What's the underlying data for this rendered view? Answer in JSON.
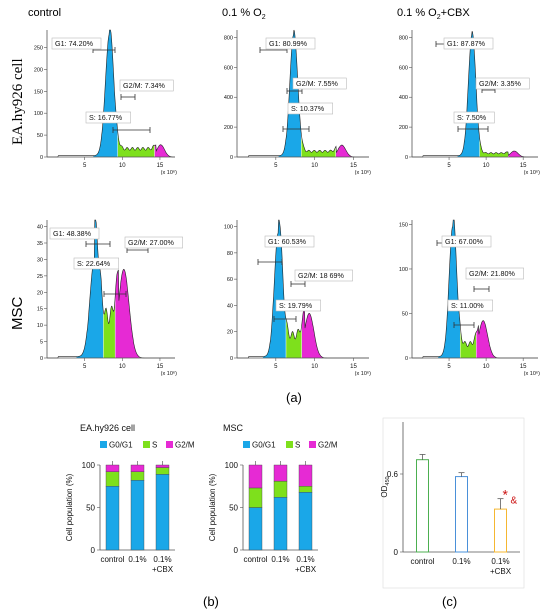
{
  "colors": {
    "g1": "#1aa7e8",
    "s": "#7ee01c",
    "g2m": "#e62ad4",
    "axis": "#555555",
    "ink": "#111111",
    "label_border": "#bbbbbb",
    "od_bar1": "#4caf50",
    "od_bar2": "#4a90d9",
    "od_bar3": "#f5b731",
    "annot": "#cc1111"
  },
  "figure": {
    "panel_a_label": "(a)",
    "panel_b_label": "(b)",
    "panel_c_label": "(c)"
  },
  "histograms": {
    "columns": [
      "control",
      "0.1 % O",
      "0.1 % O"
    ],
    "column_subscript": "2",
    "column_suffix": "+CBX",
    "rows": [
      "EA.hy926 cell",
      "MSC"
    ],
    "x_unit": "(x 10⁶)"
  },
  "chart_data": [
    {
      "type": "area",
      "title": "control",
      "row": "EA.hy926 cell",
      "xlim": [
        0,
        17
      ],
      "ylim": [
        0,
        290
      ],
      "xticks": [
        5,
        10,
        15
      ],
      "yticks": [
        0,
        50,
        100,
        150,
        200,
        250
      ],
      "peaks": {
        "g1_x": 8.3,
        "g1_h": 280,
        "g1_w": 0.55,
        "g2_x": 15.1,
        "g2_h": 28,
        "g2_w": 0.5,
        "s_level": 22,
        "s_end": 14.5
      },
      "annotations": [
        "G1: 74.20%",
        "G2/M: 7.34%",
        "S: 16.77%"
      ],
      "percent": {
        "G1": 74.2,
        "S": 16.77,
        "G2/M": 7.34
      }
    },
    {
      "type": "area",
      "title": "0.1 % O2",
      "row": "EA.hy926 cell",
      "xlim": [
        0,
        17
      ],
      "ylim": [
        0,
        850
      ],
      "xticks": [
        5,
        10,
        15
      ],
      "yticks": [
        0,
        200,
        400,
        600,
        800
      ],
      "peaks": {
        "g1_x": 7.3,
        "g1_h": 820,
        "g1_w": 0.5,
        "g2_x": 13.5,
        "g2_h": 80,
        "g2_w": 0.5,
        "s_level": 45,
        "s_end": 12.8
      },
      "annotations": [
        "G1: 80.99%",
        "G2/M: 7.55%",
        "S: 10.37%"
      ],
      "percent": {
        "G1": 80.99,
        "S": 10.37,
        "G2/M": 7.55
      }
    },
    {
      "type": "area",
      "title": "0.1 % O2 +CBX",
      "row": "EA.hy926 cell",
      "xlim": [
        0,
        17
      ],
      "ylim": [
        0,
        850
      ],
      "xticks": [
        5,
        10,
        15
      ],
      "yticks": [
        0,
        200,
        400,
        600,
        800
      ],
      "peaks": {
        "g1_x": 8.1,
        "g1_h": 820,
        "g1_w": 0.5,
        "g2_x": 13.8,
        "g2_h": 40,
        "g2_w": 0.5,
        "s_level": 30,
        "s_end": 13.0
      },
      "annotations": [
        "G1: 87.87%",
        "G2/M: 3.35%",
        "S: 7.50%"
      ],
      "percent": {
        "G1": 87.87,
        "S": 7.5,
        "G2/M": 3.35
      }
    },
    {
      "type": "area",
      "title": "control",
      "row": "MSC",
      "xlim": [
        0,
        17
      ],
      "ylim": [
        0,
        42
      ],
      "xticks": [
        5,
        10,
        15
      ],
      "yticks": [
        0,
        5,
        10,
        15,
        20,
        25,
        30,
        35,
        40
      ],
      "peaks": {
        "g1_x": 6.3,
        "g1_h": 30,
        "g1_w": 0.6,
        "g2_x": 10.2,
        "g2_h": 27,
        "g2_w": 0.7,
        "s_level": 14,
        "s_end": 9.5
      },
      "annotations": [
        "G1: 48.38%",
        "G2/M: 27.00%",
        "S: 22.64%"
      ],
      "percent": {
        "G1": 48.38,
        "S": 22.64,
        "G2/M": 27.0
      }
    },
    {
      "type": "area",
      "title": "0.1 % O2",
      "row": "MSC",
      "xlim": [
        0,
        17
      ],
      "ylim": [
        0,
        105
      ],
      "xticks": [
        5,
        10,
        15
      ],
      "yticks": [
        0,
        20,
        40,
        60,
        80,
        100
      ],
      "peaks": {
        "g1_x": 5.3,
        "g1_h": 95,
        "g1_w": 0.5,
        "g2_x": 9.3,
        "g2_h": 34,
        "g2_w": 0.6,
        "s_level": 20,
        "s_end": 8.7
      },
      "annotations": [
        "G1: 60.53%",
        "G2/M: 18 69%",
        "S: 19.79%"
      ],
      "percent": {
        "G1": 60.53,
        "S": 19.79,
        "G2/M": 18.69
      }
    },
    {
      "type": "area",
      "title": "0.1 % O2 +CBX",
      "row": "MSC",
      "xlim": [
        0,
        17
      ],
      "ylim": [
        0,
        155
      ],
      "xticks": [
        5,
        10,
        15
      ],
      "yticks": [
        0,
        50,
        100,
        150
      ],
      "peaks": {
        "g1_x": 5.5,
        "g1_h": 148,
        "g1_w": 0.5,
        "g2_x": 9.6,
        "g2_h": 42,
        "g2_w": 0.6,
        "s_level": 18,
        "s_end": 9.0
      },
      "annotations": [
        "G1: 67.00%",
        "G2/M: 21.80%",
        "S: 11.00%"
      ],
      "percent": {
        "G1": 67.0,
        "S": 11.0,
        "G2/M": 21.8
      }
    },
    {
      "type": "bar",
      "stacked": true,
      "title": "EA.hy926 cell",
      "categories": [
        "control",
        "0.1%",
        "0.1%\n+CBX"
      ],
      "ylabel": "Cell population (%)",
      "ylim": [
        0,
        100
      ],
      "yticks": [
        0,
        50,
        100
      ],
      "legend": "top",
      "series": [
        {
          "name": "G0/G1",
          "values": [
            75,
            82,
            89
          ]
        },
        {
          "name": "S",
          "values": [
            17,
            10,
            8
          ]
        },
        {
          "name": "G2/M",
          "values": [
            8,
            8,
            3
          ]
        }
      ]
    },
    {
      "type": "bar",
      "stacked": true,
      "title": "MSC",
      "categories": [
        "control",
        "0.1%",
        "0.1%\n+CBX"
      ],
      "ylabel": "Cell population (%)",
      "ylim": [
        0,
        100
      ],
      "yticks": [
        0,
        50,
        100
      ],
      "legend": "top",
      "series": [
        {
          "name": "G0/G1",
          "values": [
            50,
            62,
            68
          ]
        },
        {
          "name": "S",
          "values": [
            23,
            19,
            7
          ]
        },
        {
          "name": "G2/M",
          "values": [
            27,
            19,
            25
          ]
        }
      ]
    },
    {
      "type": "bar",
      "title": "",
      "categories": [
        "control",
        "0.1%",
        "0.1%\n+CBX"
      ],
      "ylabel": "OD",
      "ylabel_subscript": "450",
      "ylim": [
        0,
        1.0
      ],
      "yticks": [
        0,
        0.6
      ],
      "series": [
        {
          "name": "",
          "values": [
            0.71,
            0.58,
            0.33
          ],
          "errors": [
            0.04,
            0.03,
            0.08
          ]
        }
      ],
      "annotations": [
        "*",
        "&"
      ]
    }
  ]
}
